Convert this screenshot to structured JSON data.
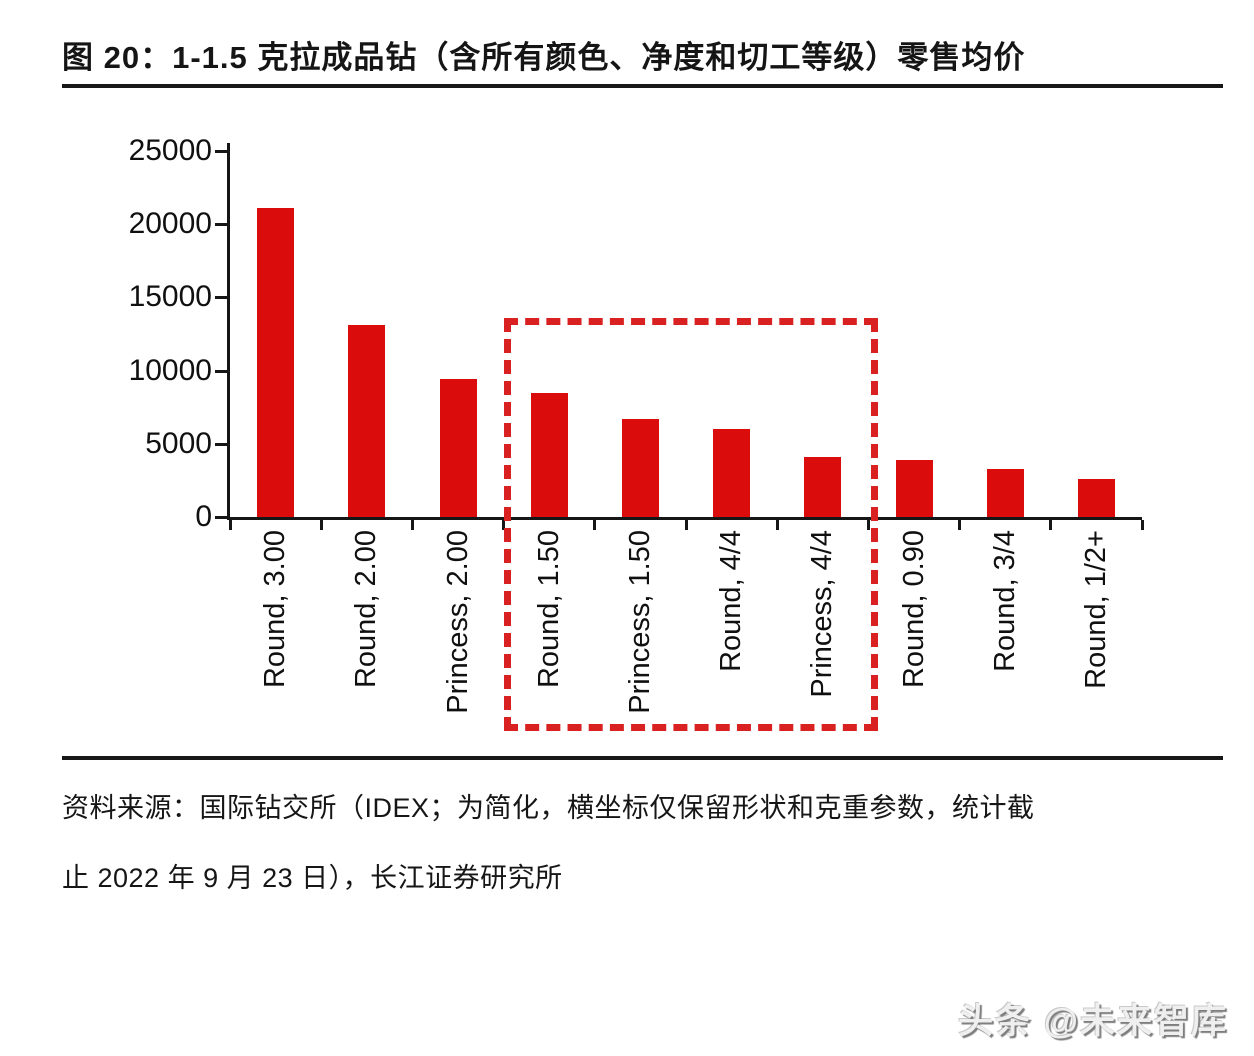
{
  "header": {
    "figure_title": "图 20：1-1.5 克拉成品钻（含所有颜色、净度和切工等级）零售均价"
  },
  "chart_data": {
    "type": "bar",
    "title": "1-1.5 克拉成品钻（含所有颜色、净度和切工等级）零售均价",
    "categories": [
      "Round, 3.00",
      "Round, 2.00",
      "Princess, 2.00",
      "Round, 1.50",
      "Princess, 1.50",
      "Round, 4/4",
      "Princess, 4/4",
      "Round, 0.90",
      "Round, 3/4",
      "Round, 1/2+"
    ],
    "values": [
      21100,
      13100,
      9400,
      8500,
      6700,
      6000,
      4100,
      3900,
      3300,
      2600
    ],
    "xlabel": "",
    "ylabel": "",
    "ylim": [
      0,
      25000
    ],
    "yticks": [
      0,
      5000,
      10000,
      15000,
      20000,
      25000
    ],
    "grid": false,
    "legend": null,
    "bar_color": "#db0c0c",
    "axis_color": "#161616",
    "highlight_box": {
      "start_index": 3,
      "end_index": 6,
      "categories_in_box": [
        "Round, 1.50",
        "Princess, 1.50",
        "Round, 4/4",
        "Princess, 4/4"
      ],
      "color": "#d92121",
      "style": "dashed"
    }
  },
  "footer": {
    "source_line_1": "资料来源：国际钻交所（IDEX；为简化，横坐标仅保留形状和克重参数，统计截",
    "source_line_2": "止 2022 年 9 月 23 日），长江证券研究所"
  },
  "watermark": {
    "text": "头条 @未来智库"
  }
}
